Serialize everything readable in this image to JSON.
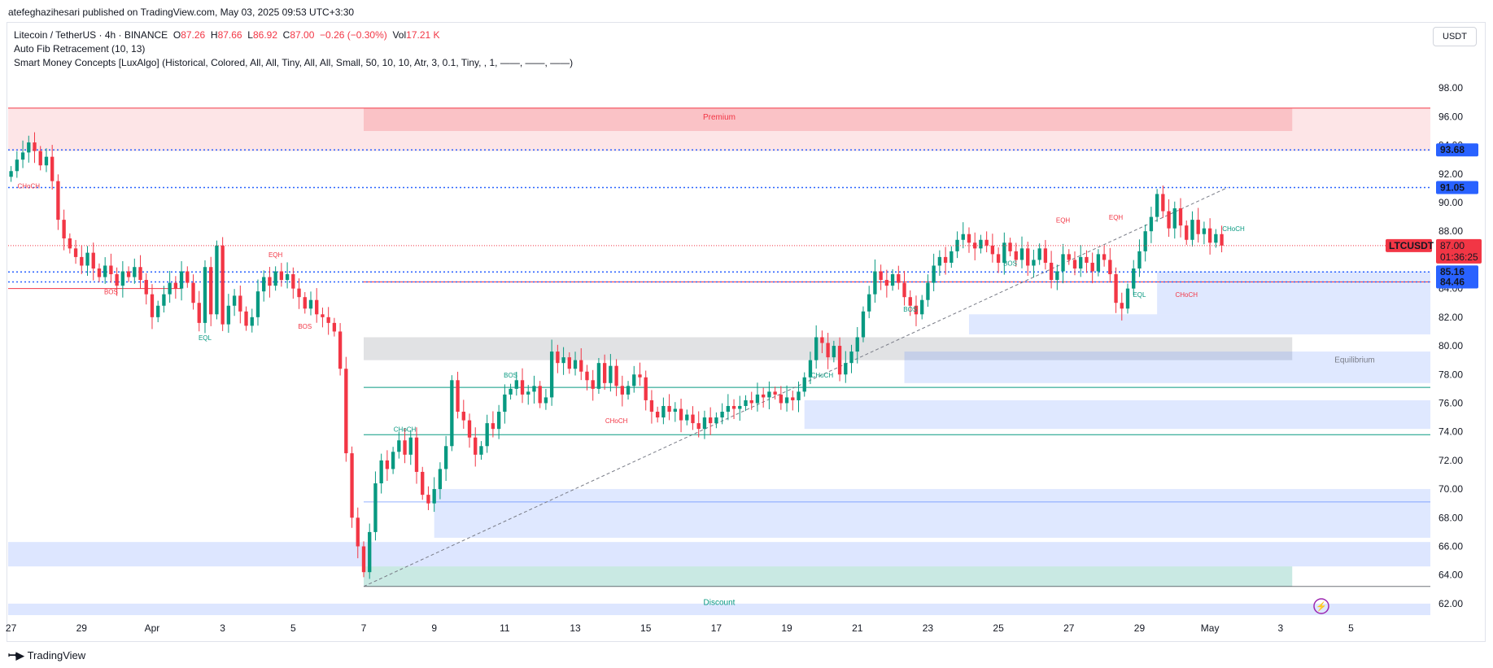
{
  "header": {
    "published": "atefeghazihesari published on TradingView.com, May 03, 2025 09:53 UTC+3:30"
  },
  "legend": {
    "symbol": "Litecoin / TetherUS · 4h · BINANCE",
    "o_label": "O",
    "o_value": "87.26",
    "h_label": "H",
    "h_value": "87.66",
    "l_label": "L",
    "l_value": "86.92",
    "c_label": "C",
    "c_value": "87.00",
    "change": "−0.26 (−0.30%)",
    "vol_label": "Vol",
    "vol_value": "17.21 K",
    "indicator1": "Auto Fib Retracement (10, 13)",
    "indicator2": "Smart Money Concepts [LuxAlgo] (Historical, Colored, All, All, Tiny, All, All, Small, 50, 10, 10, Atr, 3, 0.1, Tiny, , 1, ——, ——, ——)"
  },
  "currency": "USDT",
  "footer": {
    "logo_text": "TradingView"
  },
  "colors": {
    "up": "#089981",
    "down": "#f23645",
    "accent": "#2962ff",
    "premium": "#f23645",
    "discount": "#2962ff"
  },
  "chart_data": {
    "type": "candlestick",
    "symbol": "LTCUSDT",
    "timeframe": "4h",
    "ylim": [
      61.2,
      99.6
    ],
    "y_ticks": [
      62,
      64,
      66,
      68,
      70,
      72,
      74,
      76,
      78,
      80,
      82,
      84,
      86,
      88,
      90,
      92,
      94,
      96,
      98
    ],
    "x_ticks": [
      {
        "label": "27",
        "i": 0
      },
      {
        "label": "29",
        "i": 12
      },
      {
        "label": "Apr",
        "i": 24
      },
      {
        "label": "3",
        "i": 36
      },
      {
        "label": "5",
        "i": 48
      },
      {
        "label": "7",
        "i": 60
      },
      {
        "label": "9",
        "i": 72
      },
      {
        "label": "11",
        "i": 84
      },
      {
        "label": "13",
        "i": 96
      },
      {
        "label": "15",
        "i": 108
      },
      {
        "label": "17",
        "i": 120
      },
      {
        "label": "19",
        "i": 132
      },
      {
        "label": "21",
        "i": 144
      },
      {
        "label": "23",
        "i": 156
      },
      {
        "label": "25",
        "i": 168
      },
      {
        "label": "27",
        "i": 180
      },
      {
        "label": "29",
        "i": 192
      },
      {
        "label": "May",
        "i": 204
      },
      {
        "label": "3",
        "i": 216
      },
      {
        "label": "5",
        "i": 228
      }
    ],
    "bars_visible": 242,
    "closes": [
      92.2,
      93.0,
      93.5,
      94.2,
      93.6,
      92.6,
      93.2,
      91.5,
      88.8,
      87.5,
      86.8,
      86.2,
      85.6,
      86.5,
      85.4,
      84.8,
      85.6,
      85.0,
      84.2,
      85.2,
      84.8,
      85.5,
      84.6,
      83.6,
      82.0,
      82.8,
      83.6,
      84.4,
      84.0,
      85.2,
      84.4,
      83.0,
      81.6,
      85.5,
      82.2,
      87.0,
      81.5,
      82.8,
      83.5,
      82.4,
      81.4,
      82.0,
      83.8,
      84.8,
      84.2,
      85.2,
      84.6,
      85.0,
      84.0,
      83.4,
      82.6,
      83.2,
      82.2,
      82.0,
      81.6,
      81.0,
      78.4,
      72.5,
      68.0,
      66.0,
      64.2,
      67.0,
      70.4,
      72.0,
      71.4,
      72.6,
      73.4,
      72.4,
      73.6,
      71.2,
      69.6,
      69.0,
      70.0,
      71.4,
      73.0,
      77.6,
      75.4,
      74.8,
      73.6,
      72.4,
      73.0,
      74.6,
      74.2,
      75.4,
      76.6,
      77.0,
      77.6,
      76.6,
      76.8,
      77.2,
      76.0,
      76.4,
      79.6,
      78.8,
      79.2,
      78.4,
      79.0,
      78.2,
      77.6,
      77.0,
      78.8,
      77.4,
      78.6,
      77.2,
      76.6,
      77.2,
      78.0,
      77.8,
      76.2,
      75.4,
      75.0,
      75.8,
      75.4,
      75.6,
      74.8,
      75.2,
      74.6,
      74.2,
      75.0,
      74.6,
      75.0,
      75.4,
      75.8,
      75.6,
      75.8,
      76.2,
      76.0,
      76.6,
      76.4,
      76.8,
      76.6,
      76.0,
      76.4,
      76.2,
      76.8,
      77.8,
      79.0,
      80.6,
      80.2,
      79.2,
      80.0,
      78.0,
      78.8,
      79.6,
      80.6,
      82.4,
      83.6,
      85.2,
      84.6,
      84.2,
      85.0,
      84.4,
      83.4,
      82.8,
      82.2,
      83.2,
      84.4,
      85.6,
      86.2,
      85.8,
      86.6,
      87.4,
      87.8,
      87.2,
      86.8,
      87.4,
      87.0,
      86.4,
      85.8,
      87.2,
      86.6,
      86.0,
      86.8,
      85.6,
      86.0,
      86.8,
      85.8,
      84.6,
      85.2,
      86.4,
      86.0,
      85.4,
      86.2,
      85.8,
      85.2,
      86.4,
      86.0,
      85.0,
      83.0,
      82.6,
      84.0,
      85.4,
      86.6,
      88.0,
      89.0,
      90.6,
      89.4,
      88.2,
      89.6,
      88.4,
      87.4,
      88.8,
      87.8,
      88.2,
      87.2,
      87.8,
      87.0
    ],
    "levels": [
      {
        "label": "93.68",
        "value": 93.68,
        "style": "dotted",
        "color": "#2962ff"
      },
      {
        "label": "91.05",
        "value": 91.05,
        "style": "dotted",
        "color": "#2962ff"
      },
      {
        "label": "85.16",
        "value": 85.16,
        "style": "dotted",
        "color": "#2962ff"
      },
      {
        "label": "84.46",
        "value": 84.46,
        "style": "dotted",
        "color": "#2962ff"
      }
    ],
    "last_price": {
      "symbol": "LTCUSDT",
      "price": "87.00",
      "countdown": "01:36:25"
    },
    "zones": {
      "premium": {
        "label": "Premium",
        "top": 96.6,
        "bottom": 93.6
      },
      "equilibrium": {
        "label": "Equilibrium",
        "top": 80.6,
        "bottom": 79.0
      },
      "discount": {
        "label": "Discount",
        "top": 64.6,
        "bottom": 61.2
      }
    },
    "smc_labels": [
      {
        "text": "CHoCH",
        "i": 3,
        "y": 91.0,
        "color": "#f23645"
      },
      {
        "text": "BOS",
        "i": 17,
        "y": 83.6,
        "color": "#f23645"
      },
      {
        "text": "EQL",
        "i": 33,
        "y": 80.4,
        "color": "#089981"
      },
      {
        "text": "EQH",
        "i": 45,
        "y": 86.2,
        "color": "#f23645"
      },
      {
        "text": "BOS",
        "i": 50,
        "y": 81.2,
        "color": "#f23645"
      },
      {
        "text": "CHoCH",
        "i": 67,
        "y": 74.0,
        "color": "#089981"
      },
      {
        "text": "BOS",
        "i": 85,
        "y": 77.8,
        "color": "#089981"
      },
      {
        "text": "CHoCH",
        "i": 103,
        "y": 74.6,
        "color": "#f23645"
      },
      {
        "text": "CHoCH",
        "i": 138,
        "y": 77.8,
        "color": "#089981"
      },
      {
        "text": "BOS",
        "i": 153,
        "y": 82.4,
        "color": "#089981"
      },
      {
        "text": "BOS",
        "i": 170,
        "y": 85.6,
        "color": "#089981"
      },
      {
        "text": "EQH",
        "i": 179,
        "y": 88.6,
        "color": "#f23645"
      },
      {
        "text": "EQH",
        "i": 188,
        "y": 88.8,
        "color": "#f23645"
      },
      {
        "text": "EQL",
        "i": 192,
        "y": 83.4,
        "color": "#089981"
      },
      {
        "text": "CHoCH",
        "i": 200,
        "y": 83.4,
        "color": "#f23645"
      },
      {
        "text": "CHoCH",
        "i": 208,
        "y": 88.0,
        "color": "#089981"
      }
    ]
  }
}
